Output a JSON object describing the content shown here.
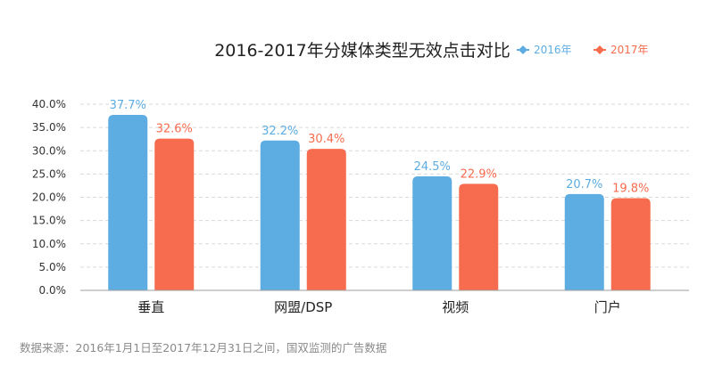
{
  "chart_data": {
    "type": "bar",
    "title": "2016-2017年分媒体类型无效点击对比",
    "categories": [
      "垂直",
      "网盟/DSP",
      "视频",
      "门户"
    ],
    "series": [
      {
        "name": "2016年",
        "values": [
          37.7,
          32.2,
          24.5,
          20.7
        ],
        "color": "#5DADE2",
        "labels": [
          "37.7%",
          "32.2%",
          "24.5%",
          "20.7%"
        ]
      },
      {
        "name": "2017年",
        "values": [
          32.6,
          30.4,
          22.9,
          19.8
        ],
        "color": "#F76C4E",
        "labels": [
          "32.6%",
          "30.4%",
          "22.9%",
          "19.8%"
        ]
      }
    ],
    "yticks": [
      "0.0%",
      "5.0%",
      "10.0%",
      "15.0%",
      "20.0%",
      "25.0%",
      "30.0%",
      "35.0%",
      "40.0%"
    ],
    "ylim": [
      0,
      40
    ],
    "grid": true,
    "legend_position": "top-right",
    "legend_marker": "diamond-with-line"
  },
  "source_note": "数据来源：2016年1月1日至2017年12月31日之间，国双监测的广告数据"
}
